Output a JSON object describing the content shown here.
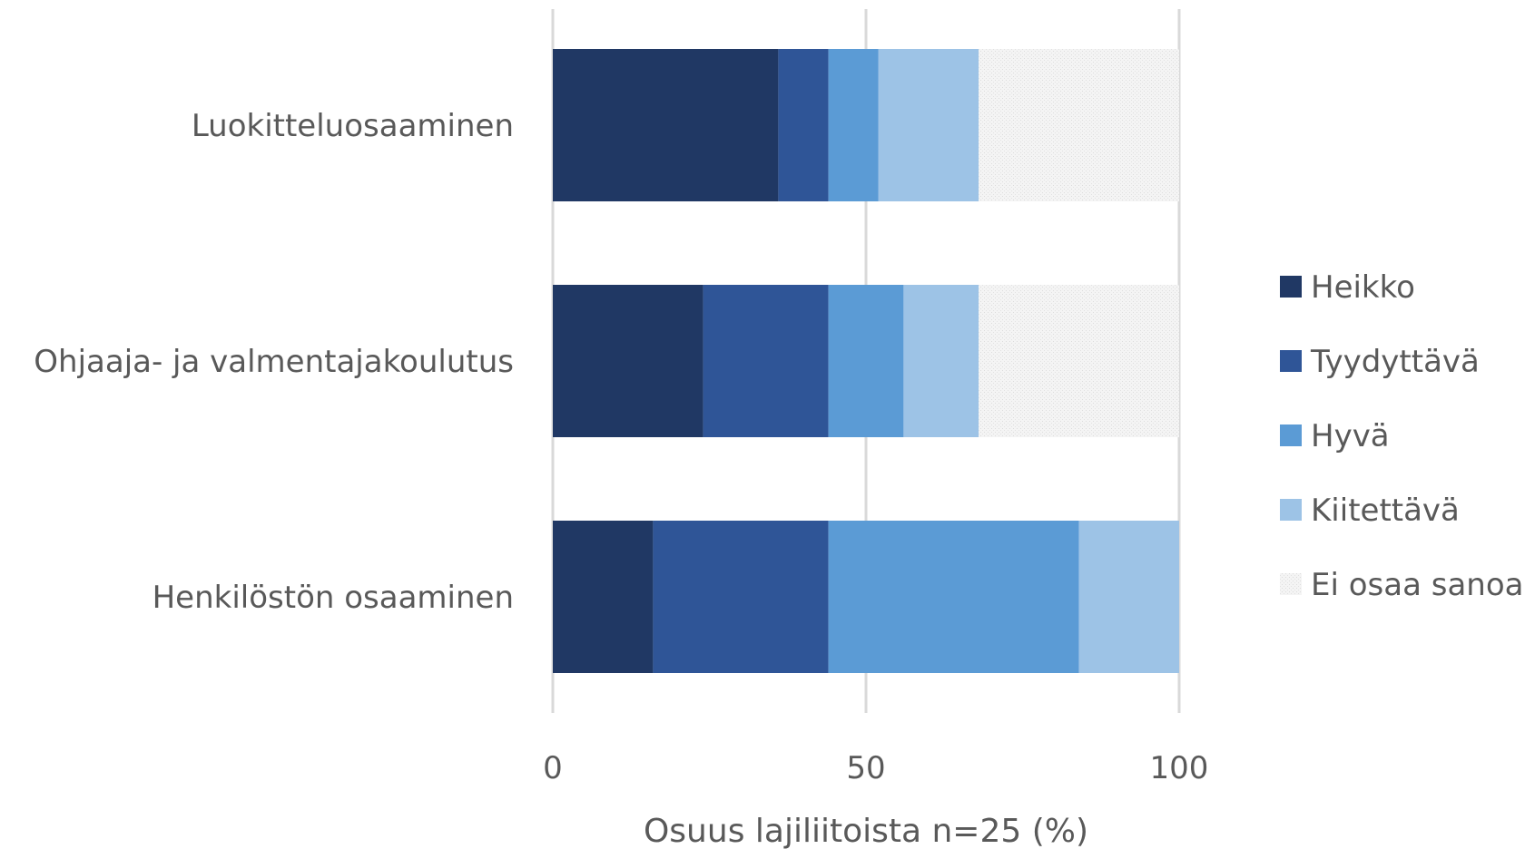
{
  "chart_data": {
    "type": "bar",
    "orientation": "horizontal",
    "stacked": true,
    "categories": [
      "Luokitteluosaaminen",
      "Ohjaaja- ja valmentajakoulutus",
      "Henkilöstön osaaminen"
    ],
    "series": [
      {
        "name": "Heikko",
        "color": "#203864",
        "values": [
          36,
          24,
          16
        ]
      },
      {
        "name": "Tyydyttävä",
        "color": "#2F5597",
        "values": [
          8,
          20,
          28
        ]
      },
      {
        "name": "Hyvä",
        "color": "#5B9BD5",
        "values": [
          8,
          12,
          40
        ]
      },
      {
        "name": "Kiitettävä",
        "color": "#9DC3E6",
        "values": [
          16,
          12,
          16
        ]
      },
      {
        "name": "Ei osaa sanoa",
        "color": "#F2F2F2",
        "pattern": "dotted",
        "values": [
          32,
          32,
          0
        ]
      }
    ],
    "xlabel": "Osuus lajiliitoista n=25 (%)",
    "xlim": [
      0,
      100
    ],
    "xticks": [
      0,
      50,
      100
    ],
    "grid": "vertical",
    "legend_position": "right"
  }
}
